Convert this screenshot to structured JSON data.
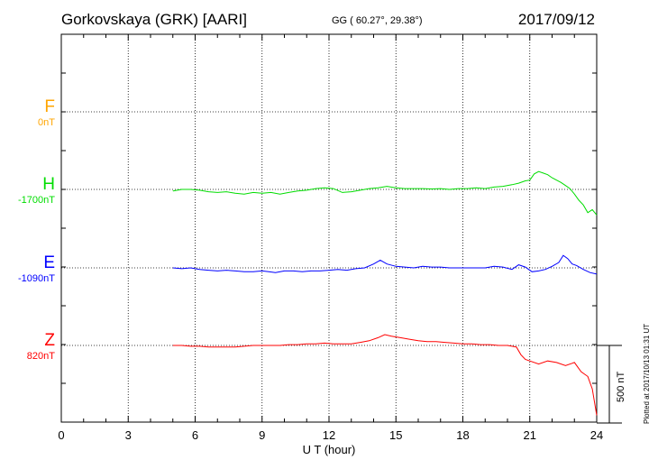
{
  "header": {
    "station": "Gorkovskaya (GRK)  [AARI]",
    "coords": "GG ( 60.27°,  29.38°)",
    "date": "2017/09/12"
  },
  "plotted_note": "Plotted at 2017/10/13 01:31  UT",
  "scale_label": "500 nT",
  "chart_data": {
    "type": "line",
    "xlabel": "U T (hour)",
    "xlim": [
      0,
      24
    ],
    "xticks": [
      0,
      3,
      6,
      9,
      12,
      15,
      18,
      21,
      24
    ],
    "x_tick_labels": [
      "0",
      "3",
      "6",
      "9",
      "12",
      "15",
      "18",
      "21",
      "24"
    ],
    "grid": true,
    "units_per_component_spacing_nT": 500,
    "series": [
      {
        "name": "F",
        "offset_label": "0nT",
        "color": "#ffa500",
        "baseline_nT": 0,
        "x": [],
        "y": []
      },
      {
        "name": "H",
        "offset_label": "-1700nT",
        "color": "#00dd00",
        "baseline_nT": -1700,
        "x": [
          5.0,
          5.4,
          5.8,
          6.2,
          6.6,
          7.0,
          7.4,
          7.8,
          8.2,
          8.6,
          9.0,
          9.4,
          9.8,
          10.2,
          10.6,
          11.0,
          11.4,
          11.8,
          12.2,
          12.6,
          13.0,
          13.4,
          13.8,
          14.2,
          14.6,
          15.0,
          15.4,
          15.8,
          16.2,
          16.6,
          17.0,
          17.4,
          17.8,
          18.2,
          18.6,
          19.0,
          19.4,
          19.8,
          20.2,
          20.5,
          20.8,
          21.0,
          21.2,
          21.4,
          21.6,
          21.8,
          22.0,
          22.2,
          22.4,
          22.6,
          22.8,
          23.0,
          23.2,
          23.4,
          23.6,
          23.8,
          24.0
        ],
        "y": [
          -10,
          0,
          0,
          -5,
          -15,
          -20,
          -15,
          -25,
          -30,
          -20,
          -25,
          -20,
          -30,
          -20,
          -10,
          -5,
          5,
          10,
          5,
          -20,
          -15,
          -5,
          5,
          10,
          20,
          10,
          5,
          5,
          5,
          3,
          5,
          0,
          5,
          5,
          10,
          5,
          15,
          20,
          30,
          40,
          55,
          60,
          100,
          115,
          105,
          95,
          75,
          60,
          45,
          25,
          5,
          -30,
          -70,
          -100,
          -150,
          -130,
          -165
        ]
      },
      {
        "name": "E",
        "offset_label": "-1090nT",
        "color": "#0000ff",
        "baseline_nT": -1090,
        "x": [
          5.0,
          5.4,
          5.8,
          6.2,
          6.6,
          7.0,
          7.4,
          7.8,
          8.2,
          8.6,
          9.0,
          9.3,
          9.6,
          10.0,
          10.4,
          10.8,
          11.2,
          11.6,
          12.0,
          12.4,
          12.8,
          13.2,
          13.6,
          14.0,
          14.3,
          14.6,
          15.0,
          15.4,
          15.8,
          16.2,
          16.6,
          17.0,
          17.4,
          17.8,
          18.2,
          18.6,
          19.0,
          19.4,
          19.8,
          20.2,
          20.5,
          20.8,
          21.1,
          21.4,
          21.7,
          22.0,
          22.3,
          22.5,
          22.7,
          22.9,
          23.1,
          23.4,
          23.7,
          24.0
        ],
        "y": [
          0,
          -5,
          0,
          -10,
          -15,
          -20,
          -15,
          -20,
          -25,
          -25,
          -20,
          -25,
          -30,
          -20,
          -20,
          -25,
          -20,
          -20,
          -15,
          -10,
          -15,
          -5,
          0,
          25,
          50,
          25,
          10,
          5,
          0,
          10,
          5,
          5,
          0,
          0,
          0,
          0,
          0,
          10,
          5,
          -10,
          20,
          5,
          -25,
          -20,
          -10,
          10,
          35,
          80,
          60,
          25,
          15,
          -10,
          -30,
          -40
        ]
      },
      {
        "name": "Z",
        "offset_label": "820nT",
        "color": "#ff0000",
        "baseline_nT": 820,
        "x": [
          5.0,
          5.4,
          5.8,
          6.2,
          6.6,
          7.0,
          7.4,
          7.8,
          8.2,
          8.6,
          9.0,
          9.4,
          9.8,
          10.2,
          10.6,
          11.0,
          11.4,
          11.8,
          12.2,
          12.6,
          13.0,
          13.4,
          13.8,
          14.2,
          14.5,
          14.8,
          15.2,
          15.6,
          16.0,
          16.4,
          16.8,
          17.2,
          17.6,
          18.0,
          18.4,
          18.8,
          19.2,
          19.6,
          20.0,
          20.4,
          20.6,
          20.8,
          21.0,
          21.4,
          21.8,
          22.2,
          22.6,
          23.0,
          23.3,
          23.6,
          23.8,
          24.0
        ],
        "y": [
          0,
          0,
          -5,
          -5,
          -10,
          -10,
          -10,
          -10,
          -5,
          0,
          0,
          0,
          0,
          5,
          5,
          10,
          10,
          15,
          10,
          10,
          10,
          20,
          30,
          50,
          70,
          60,
          50,
          40,
          30,
          25,
          25,
          20,
          15,
          10,
          10,
          5,
          5,
          0,
          0,
          -10,
          -60,
          -90,
          -100,
          -120,
          -100,
          -110,
          -130,
          -110,
          -170,
          -200,
          -280,
          -450
        ]
      }
    ]
  }
}
